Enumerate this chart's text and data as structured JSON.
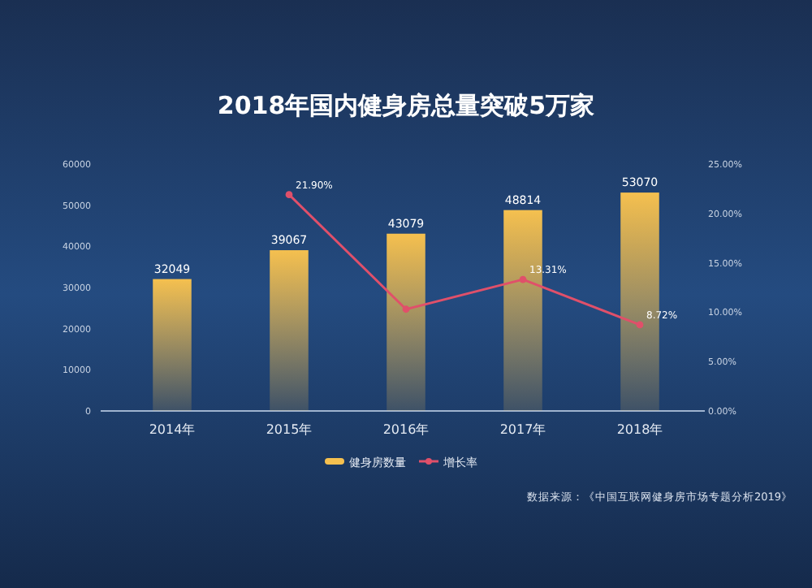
{
  "chart_data": {
    "type": "bar",
    "title": "2018年国内健身房总量突破5万家",
    "categories": [
      "2014年",
      "2015年",
      "2016年",
      "2017年",
      "2018年"
    ],
    "series": [
      {
        "name": "健身房数量",
        "color": "#f5c04f",
        "values": [
          32049,
          39067,
          43079,
          48814,
          53070
        ],
        "value_labels": [
          "32049",
          "39067",
          "43079",
          "48814",
          "53070"
        ]
      },
      {
        "name": "增长率",
        "type": "line",
        "axis": "y2",
        "color": "#e0506a",
        "values": [
          null,
          21.9,
          10.3,
          13.31,
          8.72
        ],
        "value_labels": [
          null,
          "21.90%",
          null,
          "13.31%",
          "8.72%"
        ]
      }
    ],
    "ylim": [
      0,
      60000
    ],
    "yticks": [
      0,
      10000,
      20000,
      30000,
      40000,
      50000,
      60000
    ],
    "y2lim": [
      0,
      25
    ],
    "y2ticks": [
      {
        "value": 0,
        "label": "0.00%"
      },
      {
        "value": 5,
        "label": "5.00%"
      },
      {
        "value": 10,
        "label": "10.00%"
      },
      {
        "value": 15,
        "label": "15.00%"
      },
      {
        "value": 20,
        "label": "20.00%"
      },
      {
        "value": 25,
        "label": "25.00%"
      }
    ],
    "legend": "bottom",
    "marker": "circle",
    "grid": false,
    "annotations": [
      "数据来源：《中国互联网健身房市场专题分析2019》"
    ]
  }
}
